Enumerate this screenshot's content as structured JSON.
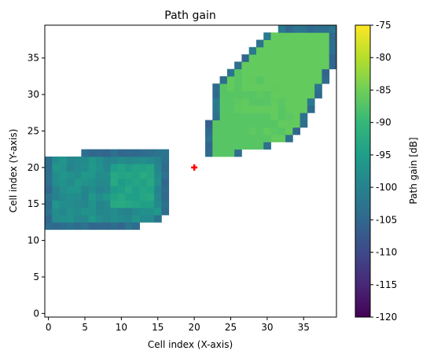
{
  "chart_data": {
    "type": "heatmap",
    "title": "Path gain",
    "xlabel": "Cell index (X-axis)",
    "ylabel": "Cell index (Y-axis)",
    "xlim": [
      0,
      40
    ],
    "ylim": [
      0,
      40
    ],
    "x_ticks": [
      0,
      5,
      10,
      15,
      20,
      25,
      30,
      35
    ],
    "y_ticks": [
      0,
      5,
      10,
      15,
      20,
      25,
      30,
      35
    ],
    "colorbar": {
      "label": "Path gain [dB]",
      "vmin": -120,
      "vmax": -75,
      "ticks": [
        -75,
        -80,
        -85,
        -90,
        -95,
        -100,
        -105,
        -110,
        -115,
        -120
      ],
      "colormap": "viridis"
    },
    "marker": {
      "symbol": "plus",
      "x": 20,
      "y": 20,
      "color": "#ff0000"
    },
    "regions": [
      {
        "name": "left coverage region",
        "x_range": [
          0,
          16
        ],
        "y_range": [
          12,
          22
        ],
        "typical_db": -98,
        "peak_db": -94,
        "edge_db": -104
      },
      {
        "name": "right coverage region",
        "x_range": [
          22,
          39
        ],
        "y_range": [
          22,
          39
        ],
        "typical_db": -92,
        "peak_db": -87,
        "edge_db": -104
      }
    ],
    "grid": false,
    "legend": "none"
  }
}
